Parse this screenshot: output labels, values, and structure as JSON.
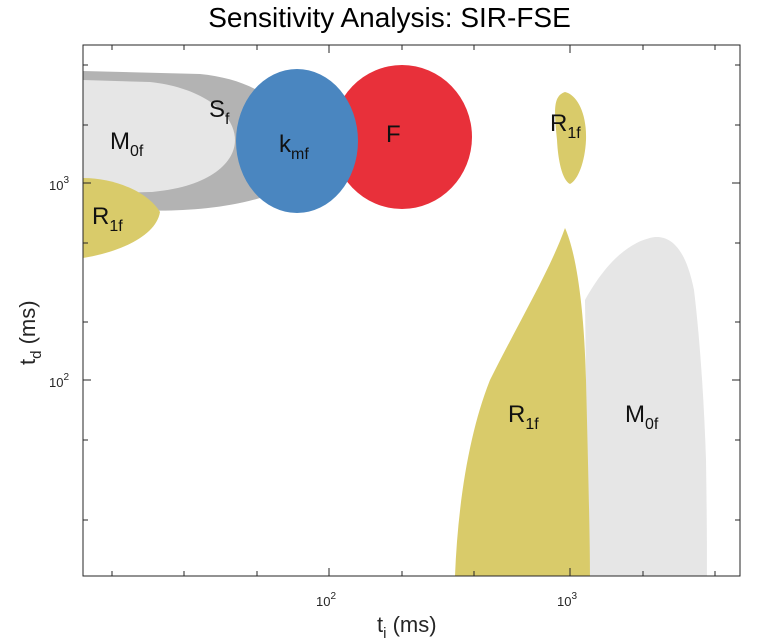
{
  "chart_data": {
    "type": "region-map",
    "title": "Sensitivity Analysis: SIR-FSE",
    "x_axis": {
      "scale": "log",
      "range": [
        11,
        4000
      ],
      "label_main": "t",
      "label_sub": "i",
      "label_unit": " (ms)",
      "ticks": [
        {
          "base": "10",
          "exp": "2"
        },
        {
          "base": "10",
          "exp": "3"
        }
      ]
    },
    "y_axis": {
      "scale": "log",
      "range": [
        11,
        4500
      ],
      "label_main": "t",
      "label_sub": "d",
      "label_unit": " (ms)",
      "ticks": [
        {
          "base": "10",
          "exp": "2"
        },
        {
          "base": "10",
          "exp": "3"
        }
      ]
    },
    "colors": {
      "S_f": "#b3b3b3",
      "M_0f": "#e6e6e6",
      "R_1f": "#d9cb6a",
      "k_mf": "#4a86c0",
      "F": "#e8303a"
    },
    "regions": [
      {
        "id": "S_f",
        "main": "S",
        "sub": "f",
        "color_key": "S_f"
      },
      {
        "id": "M_0f_left",
        "main": "M",
        "sub": "0f",
        "color_key": "M_0f"
      },
      {
        "id": "R_1f_left",
        "main": "R",
        "sub": "1f",
        "color_key": "R_1f"
      },
      {
        "id": "k_mf",
        "main": "k",
        "sub": "mf",
        "color_key": "k_mf"
      },
      {
        "id": "F",
        "main": "F",
        "sub": "",
        "color_key": "F"
      },
      {
        "id": "R_1f_top",
        "main": "R",
        "sub": "1f",
        "color_key": "R_1f"
      },
      {
        "id": "R_1f_bottom",
        "main": "R",
        "sub": "1f",
        "color_key": "R_1f"
      },
      {
        "id": "M_0f_right",
        "main": "M",
        "sub": "0f",
        "color_key": "M_0f"
      }
    ]
  }
}
